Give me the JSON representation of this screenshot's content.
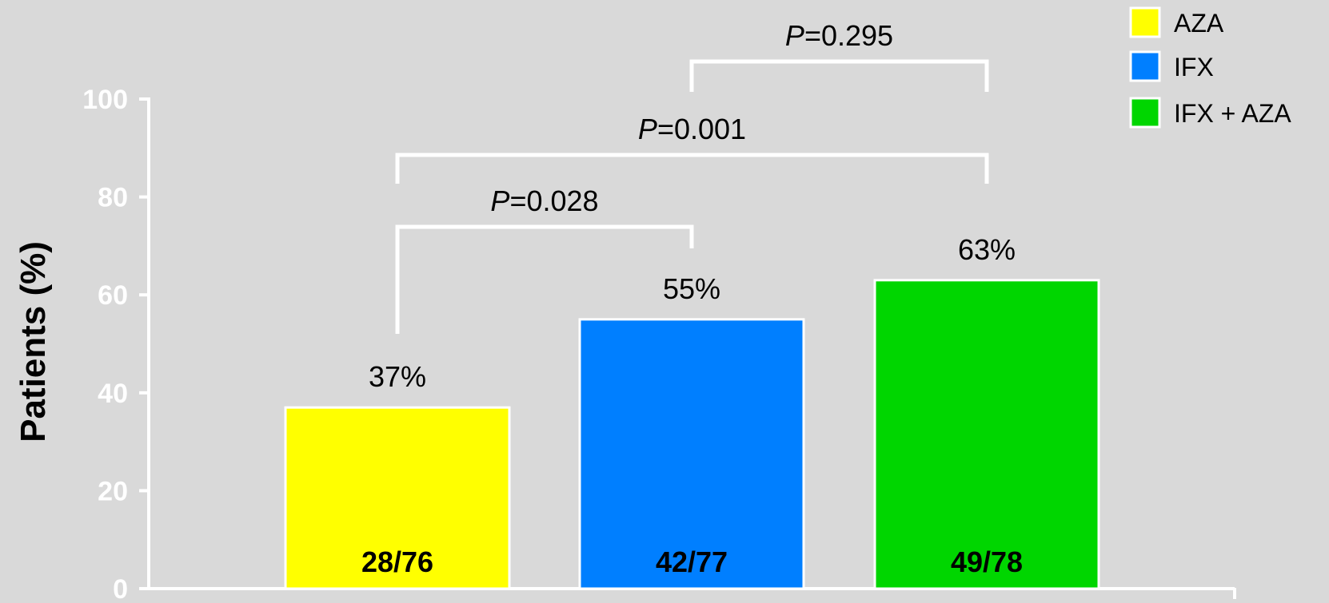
{
  "chart_data": {
    "type": "bar",
    "categories": [
      "AZA",
      "IFX",
      "IFX + AZA"
    ],
    "values": [
      37,
      55,
      63
    ],
    "value_labels": [
      "37%",
      "55%",
      "63%"
    ],
    "counts": [
      "28/76",
      "42/77",
      "49/78"
    ],
    "colors": [
      "#ffff00",
      "#007fff",
      "#00d600"
    ],
    "ylabel": "Patients (%)",
    "xlabel": "",
    "ylim": [
      0,
      100
    ],
    "yticks": [
      0,
      20,
      40,
      60,
      80,
      100
    ],
    "grid": false,
    "legend": {
      "placement": "top-right",
      "entries": [
        "AZA",
        "IFX",
        "IFX + AZA"
      ]
    },
    "comparisons": [
      {
        "from": "AZA",
        "to": "IFX",
        "p_prefix": "P",
        "p_value": "=0.028"
      },
      {
        "from": "AZA",
        "to": "IFX + AZA",
        "p_prefix": "P",
        "p_value": "=0.001"
      },
      {
        "from": "IFX",
        "to": "IFX + AZA",
        "p_prefix": "P",
        "p_value": "=0.295"
      }
    ]
  }
}
